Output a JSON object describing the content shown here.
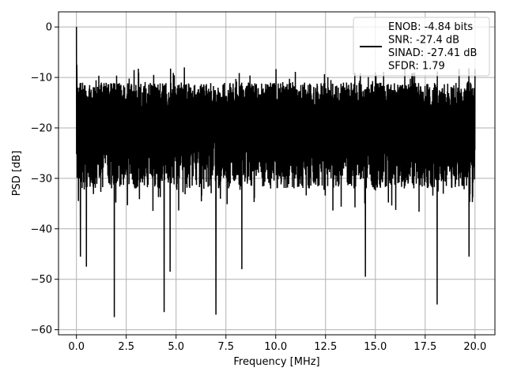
{
  "chart_data": {
    "type": "line",
    "title": "",
    "xlabel": "Frequency [MHz]",
    "ylabel": "PSD [dB]",
    "xlim": [
      -0.9,
      21.0
    ],
    "ylim": [
      -61,
      3
    ],
    "x_ticks": [
      0.0,
      2.5,
      5.0,
      7.5,
      10.0,
      12.5,
      15.0,
      17.5,
      20.0
    ],
    "x_tick_labels": [
      "0.0",
      "2.5",
      "5.0",
      "7.5",
      "10.0",
      "12.5",
      "15.0",
      "17.5",
      "20.0"
    ],
    "y_ticks": [
      0,
      -10,
      -20,
      -30,
      -40,
      -50,
      -60
    ],
    "y_tick_labels": [
      "0",
      "−10",
      "−20",
      "−30",
      "−40",
      "−50",
      "−60"
    ],
    "grid": true,
    "legend_position": "top-right",
    "legend_lines": [
      "ENOB: -4.84 bits",
      "SNR: -27.4 dB",
      "SINAD: -27.41 dB",
      "SFDR: 1.79"
    ],
    "series": [
      {
        "color": "#000000",
        "x_range": [
          0.0,
          20.0
        ],
        "noise_band": [
          -35,
          -8
        ],
        "features": [
          {
            "x": 0.0,
            "y": 0.0
          },
          {
            "x": 0.02,
            "y": -7.5
          },
          {
            "x": 0.1,
            "y": -34.5
          },
          {
            "x": 0.2,
            "y": -45.5
          },
          {
            "x": 0.5,
            "y": -47.5
          },
          {
            "x": 1.9,
            "y": -57.5
          },
          {
            "x": 4.4,
            "y": -56.5
          },
          {
            "x": 4.7,
            "y": -48.5
          },
          {
            "x": 7.0,
            "y": -57.0
          },
          {
            "x": 8.3,
            "y": -48.0
          },
          {
            "x": 14.5,
            "y": -49.5
          },
          {
            "x": 18.1,
            "y": -55.0
          },
          {
            "x": 19.7,
            "y": -45.5
          }
        ]
      }
    ]
  }
}
